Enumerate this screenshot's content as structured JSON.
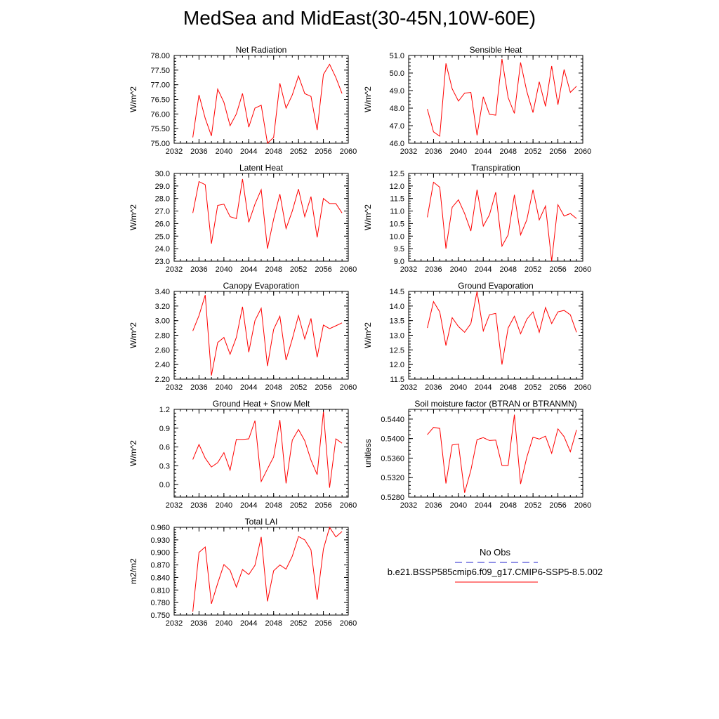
{
  "title": "MedSea and MidEast(30-45N,10W-60E)",
  "legend": {
    "obs_label": "No Obs",
    "obs_color": "#2222cc",
    "model_label": "b.e21.BSSP585cmip6.f09_g17.CMIP6-SSP5-8.5.002",
    "model_color": "#ff0000"
  },
  "chart_data": [
    {
      "type": "line",
      "title": "Net Radiation",
      "ylabel": "W/m^2",
      "xlim": [
        2032,
        2060
      ],
      "ylim": [
        75.0,
        78.0
      ],
      "xticks": [
        "2032",
        "2036",
        "2040",
        "2044",
        "2048",
        "2052",
        "2056",
        "2060"
      ],
      "yticks": [
        "75.00",
        "75.50",
        "76.00",
        "76.50",
        "77.00",
        "77.50",
        "78.00"
      ],
      "x": [
        2035,
        2036,
        2037,
        2038,
        2039,
        2040,
        2041,
        2042,
        2043,
        2044,
        2045,
        2046,
        2047,
        2048,
        2049,
        2050,
        2051,
        2052,
        2053,
        2054,
        2055,
        2056,
        2057,
        2058,
        2059
      ],
      "values": [
        75.2,
        76.65,
        75.85,
        75.25,
        76.85,
        76.4,
        75.6,
        76.0,
        76.7,
        75.55,
        76.2,
        76.3,
        75.0,
        75.2,
        77.05,
        76.2,
        76.65,
        77.3,
        76.7,
        76.6,
        75.45,
        77.35,
        77.7,
        77.25,
        76.7
      ]
    },
    {
      "type": "line",
      "title": "Sensible Heat",
      "ylabel": "W/m^2",
      "xlim": [
        2032,
        2060
      ],
      "ylim": [
        46.0,
        51.0
      ],
      "xticks": [
        "2032",
        "2036",
        "2040",
        "2044",
        "2048",
        "2052",
        "2056",
        "2060"
      ],
      "yticks": [
        "46.0",
        "47.0",
        "48.0",
        "49.0",
        "50.0",
        "51.0"
      ],
      "x": [
        2035,
        2036,
        2037,
        2038,
        2039,
        2040,
        2041,
        2042,
        2043,
        2044,
        2045,
        2046,
        2047,
        2048,
        2049,
        2050,
        2051,
        2052,
        2053,
        2054,
        2055,
        2056,
        2057,
        2058,
        2059
      ],
      "values": [
        47.95,
        46.65,
        46.4,
        50.55,
        49.1,
        48.4,
        48.85,
        48.9,
        46.45,
        48.65,
        47.65,
        47.6,
        50.8,
        48.6,
        47.7,
        50.6,
        48.95,
        47.75,
        49.5,
        48.1,
        50.4,
        48.2,
        50.2,
        48.9,
        49.25
      ]
    },
    {
      "type": "line",
      "title": "Latent Heat",
      "ylabel": "W/m^2",
      "xlim": [
        2032,
        2060
      ],
      "ylim": [
        23.0,
        30.0
      ],
      "xticks": [
        "2032",
        "2036",
        "2040",
        "2044",
        "2048",
        "2052",
        "2056",
        "2060"
      ],
      "yticks": [
        "23.0",
        "24.0",
        "25.0",
        "26.0",
        "27.0",
        "28.0",
        "29.0",
        "30.0"
      ],
      "x": [
        2035,
        2036,
        2037,
        2038,
        2039,
        2040,
        2041,
        2042,
        2043,
        2044,
        2045,
        2046,
        2047,
        2048,
        2049,
        2050,
        2051,
        2052,
        2053,
        2054,
        2055,
        2056,
        2057,
        2058,
        2059
      ],
      "values": [
        26.85,
        29.35,
        29.1,
        24.4,
        27.45,
        27.55,
        26.55,
        26.4,
        29.55,
        26.1,
        27.55,
        28.7,
        24.0,
        26.35,
        28.35,
        25.6,
        27.0,
        28.75,
        26.55,
        28.15,
        24.9,
        28.0,
        27.6,
        27.6,
        26.85
      ]
    },
    {
      "type": "line",
      "title": "Transpiration",
      "ylabel": "W/m^2",
      "xlim": [
        2032,
        2060
      ],
      "ylim": [
        9.0,
        12.5
      ],
      "xticks": [
        "2032",
        "2036",
        "2040",
        "2044",
        "2048",
        "2052",
        "2056",
        "2060"
      ],
      "yticks": [
        "9.0",
        "9.5",
        "10.0",
        "10.5",
        "11.0",
        "11.5",
        "12.0",
        "12.5"
      ],
      "x": [
        2035,
        2036,
        2037,
        2038,
        2039,
        2040,
        2041,
        2042,
        2043,
        2044,
        2045,
        2046,
        2047,
        2048,
        2049,
        2050,
        2051,
        2052,
        2053,
        2054,
        2055,
        2056,
        2057,
        2058,
        2059
      ],
      "values": [
        10.75,
        12.15,
        11.95,
        9.5,
        11.15,
        11.45,
        10.9,
        10.2,
        11.85,
        10.4,
        10.85,
        11.75,
        9.6,
        10.05,
        11.65,
        10.05,
        10.65,
        11.85,
        10.65,
        11.2,
        9.0,
        11.25,
        10.8,
        10.9,
        10.7
      ]
    },
    {
      "type": "line",
      "title": "Canopy Evaporation",
      "ylabel": "W/m^2",
      "xlim": [
        2032,
        2060
      ],
      "ylim": [
        2.2,
        3.4
      ],
      "xticks": [
        "2032",
        "2036",
        "2040",
        "2044",
        "2048",
        "2052",
        "2056",
        "2060"
      ],
      "yticks": [
        "2.20",
        "2.40",
        "2.60",
        "2.80",
        "3.00",
        "3.20",
        "3.40"
      ],
      "x": [
        2035,
        2036,
        2037,
        2038,
        2039,
        2040,
        2041,
        2042,
        2043,
        2044,
        2045,
        2046,
        2047,
        2048,
        2049,
        2050,
        2051,
        2052,
        2053,
        2054,
        2055,
        2056,
        2057,
        2058,
        2059
      ],
      "values": [
        2.86,
        3.07,
        3.35,
        2.25,
        2.7,
        2.77,
        2.54,
        2.77,
        3.19,
        2.57,
        3.0,
        3.17,
        2.38,
        2.88,
        3.06,
        2.46,
        2.75,
        3.07,
        2.75,
        3.03,
        2.5,
        2.94,
        2.89,
        2.93,
        2.97
      ]
    },
    {
      "type": "line",
      "title": "Ground Evaporation",
      "ylabel": "W/m^2",
      "xlim": [
        2032,
        2060
      ],
      "ylim": [
        11.5,
        14.5
      ],
      "xticks": [
        "2032",
        "2036",
        "2040",
        "2044",
        "2048",
        "2052",
        "2056",
        "2060"
      ],
      "yticks": [
        "11.5",
        "12.0",
        "12.5",
        "13.0",
        "13.5",
        "14.0",
        "14.5"
      ],
      "x": [
        2035,
        2036,
        2037,
        2038,
        2039,
        2040,
        2041,
        2042,
        2043,
        2044,
        2045,
        2046,
        2047,
        2048,
        2049,
        2050,
        2051,
        2052,
        2053,
        2054,
        2055,
        2056,
        2057,
        2058,
        2059
      ],
      "values": [
        13.25,
        14.15,
        13.8,
        12.65,
        13.6,
        13.3,
        13.1,
        13.4,
        14.5,
        13.15,
        13.7,
        13.75,
        12.0,
        13.25,
        13.65,
        13.05,
        13.55,
        13.8,
        13.1,
        13.95,
        13.4,
        13.8,
        13.85,
        13.7,
        13.1
      ]
    },
    {
      "type": "line",
      "title": "Ground Heat + Snow Melt",
      "ylabel": "W/m^2",
      "xlim": [
        2032,
        2060
      ],
      "ylim": [
        -0.2,
        1.2
      ],
      "xticks": [
        "2032",
        "2036",
        "2040",
        "2044",
        "2048",
        "2052",
        "2056",
        "2060"
      ],
      "yticks": [
        "0.0",
        "0.3",
        "0.6",
        "0.9",
        "1.2"
      ],
      "ytick_values": [
        0.0,
        0.3,
        0.6,
        0.9,
        1.2
      ],
      "x": [
        2035,
        2036,
        2037,
        2038,
        2039,
        2040,
        2041,
        2042,
        2043,
        2044,
        2045,
        2046,
        2047,
        2048,
        2049,
        2050,
        2051,
        2052,
        2053,
        2054,
        2055,
        2056,
        2057,
        2058,
        2059
      ],
      "values": [
        0.4,
        0.64,
        0.42,
        0.28,
        0.35,
        0.51,
        0.23,
        0.72,
        0.72,
        0.73,
        1.02,
        0.05,
        0.25,
        0.44,
        1.03,
        0.02,
        0.71,
        0.88,
        0.7,
        0.39,
        0.16,
        1.16,
        -0.05,
        0.73,
        0.66
      ]
    },
    {
      "type": "line",
      "title": "Soil moisture factor (BTRAN or BTRANMN)",
      "ylabel": "unitless",
      "xlim": [
        2032,
        2060
      ],
      "ylim": [
        0.528,
        0.546
      ],
      "xticks": [
        "2032",
        "2036",
        "2040",
        "2044",
        "2048",
        "2052",
        "2056",
        "2060"
      ],
      "yticks": [
        "0.5280",
        "0.5320",
        "0.5360",
        "0.5400",
        "0.5440"
      ],
      "ytick_values": [
        0.528,
        0.532,
        0.536,
        0.54,
        0.544
      ],
      "x": [
        2035,
        2036,
        2037,
        2038,
        2039,
        2040,
        2041,
        2042,
        2043,
        2044,
        2045,
        2046,
        2047,
        2048,
        2049,
        2050,
        2051,
        2052,
        2053,
        2054,
        2055,
        2056,
        2057,
        2058,
        2059
      ],
      "values": [
        0.5408,
        0.5423,
        0.5421,
        0.5308,
        0.5387,
        0.5389,
        0.5289,
        0.5335,
        0.5398,
        0.5402,
        0.5396,
        0.5397,
        0.5345,
        0.5345,
        0.5449,
        0.5307,
        0.5362,
        0.5403,
        0.5399,
        0.5405,
        0.537,
        0.542,
        0.5404,
        0.5373,
        0.5418
      ]
    },
    {
      "type": "line",
      "title": "Total LAI",
      "ylabel": "m2/m2",
      "xlim": [
        2032,
        2060
      ],
      "ylim": [
        0.75,
        0.96
      ],
      "xticks": [
        "2032",
        "2036",
        "2040",
        "2044",
        "2048",
        "2052",
        "2056",
        "2060"
      ],
      "yticks": [
        "0.750",
        "0.780",
        "0.810",
        "0.840",
        "0.870",
        "0.900",
        "0.930",
        "0.960"
      ],
      "x": [
        2035,
        2036,
        2037,
        2038,
        2039,
        2040,
        2041,
        2042,
        2043,
        2044,
        2045,
        2046,
        2047,
        2048,
        2049,
        2050,
        2051,
        2052,
        2053,
        2054,
        2055,
        2056,
        2057,
        2058,
        2059
      ],
      "values": [
        0.758,
        0.9,
        0.913,
        0.777,
        0.826,
        0.871,
        0.857,
        0.817,
        0.859,
        0.847,
        0.869,
        0.937,
        0.783,
        0.856,
        0.87,
        0.86,
        0.891,
        0.938,
        0.93,
        0.906,
        0.787,
        0.908,
        0.96,
        0.937,
        0.95
      ]
    }
  ]
}
